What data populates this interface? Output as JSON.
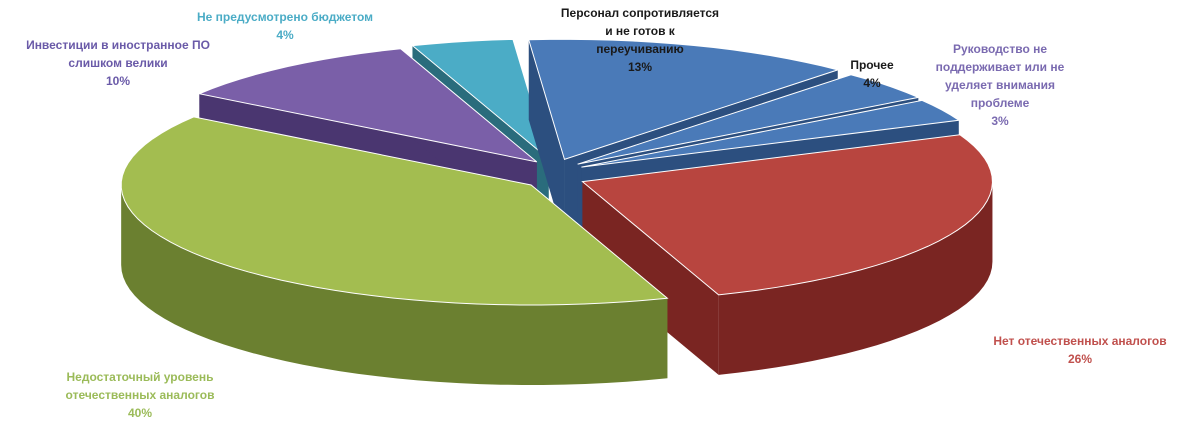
{
  "chart_data": {
    "type": "pie",
    "title": "",
    "slices": [
      {
        "label": "Персонал сопротивляется и не готов к переучиванию",
        "value": 13,
        "value_label": "13%",
        "color": "#4a7ab8",
        "side_color": "#2c4f7f",
        "label_color": "#1a1a1a"
      },
      {
        "label": "Прочее",
        "value": 4,
        "value_label": "4%",
        "color": "#4a7ab8",
        "side_color": "#2c4f7f",
        "label_color": "#1a1a1a"
      },
      {
        "label": "Руководство не поддерживает или не уделяет внимания проблеме",
        "value": 3,
        "value_label": "3%",
        "color": "#4a7ab8",
        "side_color": "#2c4f7f",
        "label_color": "#7a6ab0"
      },
      {
        "label": "Нет отечественных аналогов",
        "value": 26,
        "value_label": "26%",
        "color": "#b8453f",
        "side_color": "#7a2522",
        "label_color": "#c0504d"
      },
      {
        "label": "Недостаточный уровень отечественных аналогов",
        "value": 40,
        "value_label": "40%",
        "color": "#a3bd50",
        "side_color": "#6b8030",
        "label_color": "#9bbb59"
      },
      {
        "label": "Инвестиции в иностранное ПО слишком велики",
        "value": 10,
        "value_label": "10%",
        "color": "#7a5fa8",
        "side_color": "#4a3670",
        "label_color": "#6a5aa8"
      },
      {
        "label": "Не предусмотрено бюджетом",
        "value": 4,
        "value_label": "4%",
        "color": "#4bacc6",
        "side_color": "#2a6c7c",
        "label_color": "#4bacc6"
      }
    ]
  }
}
